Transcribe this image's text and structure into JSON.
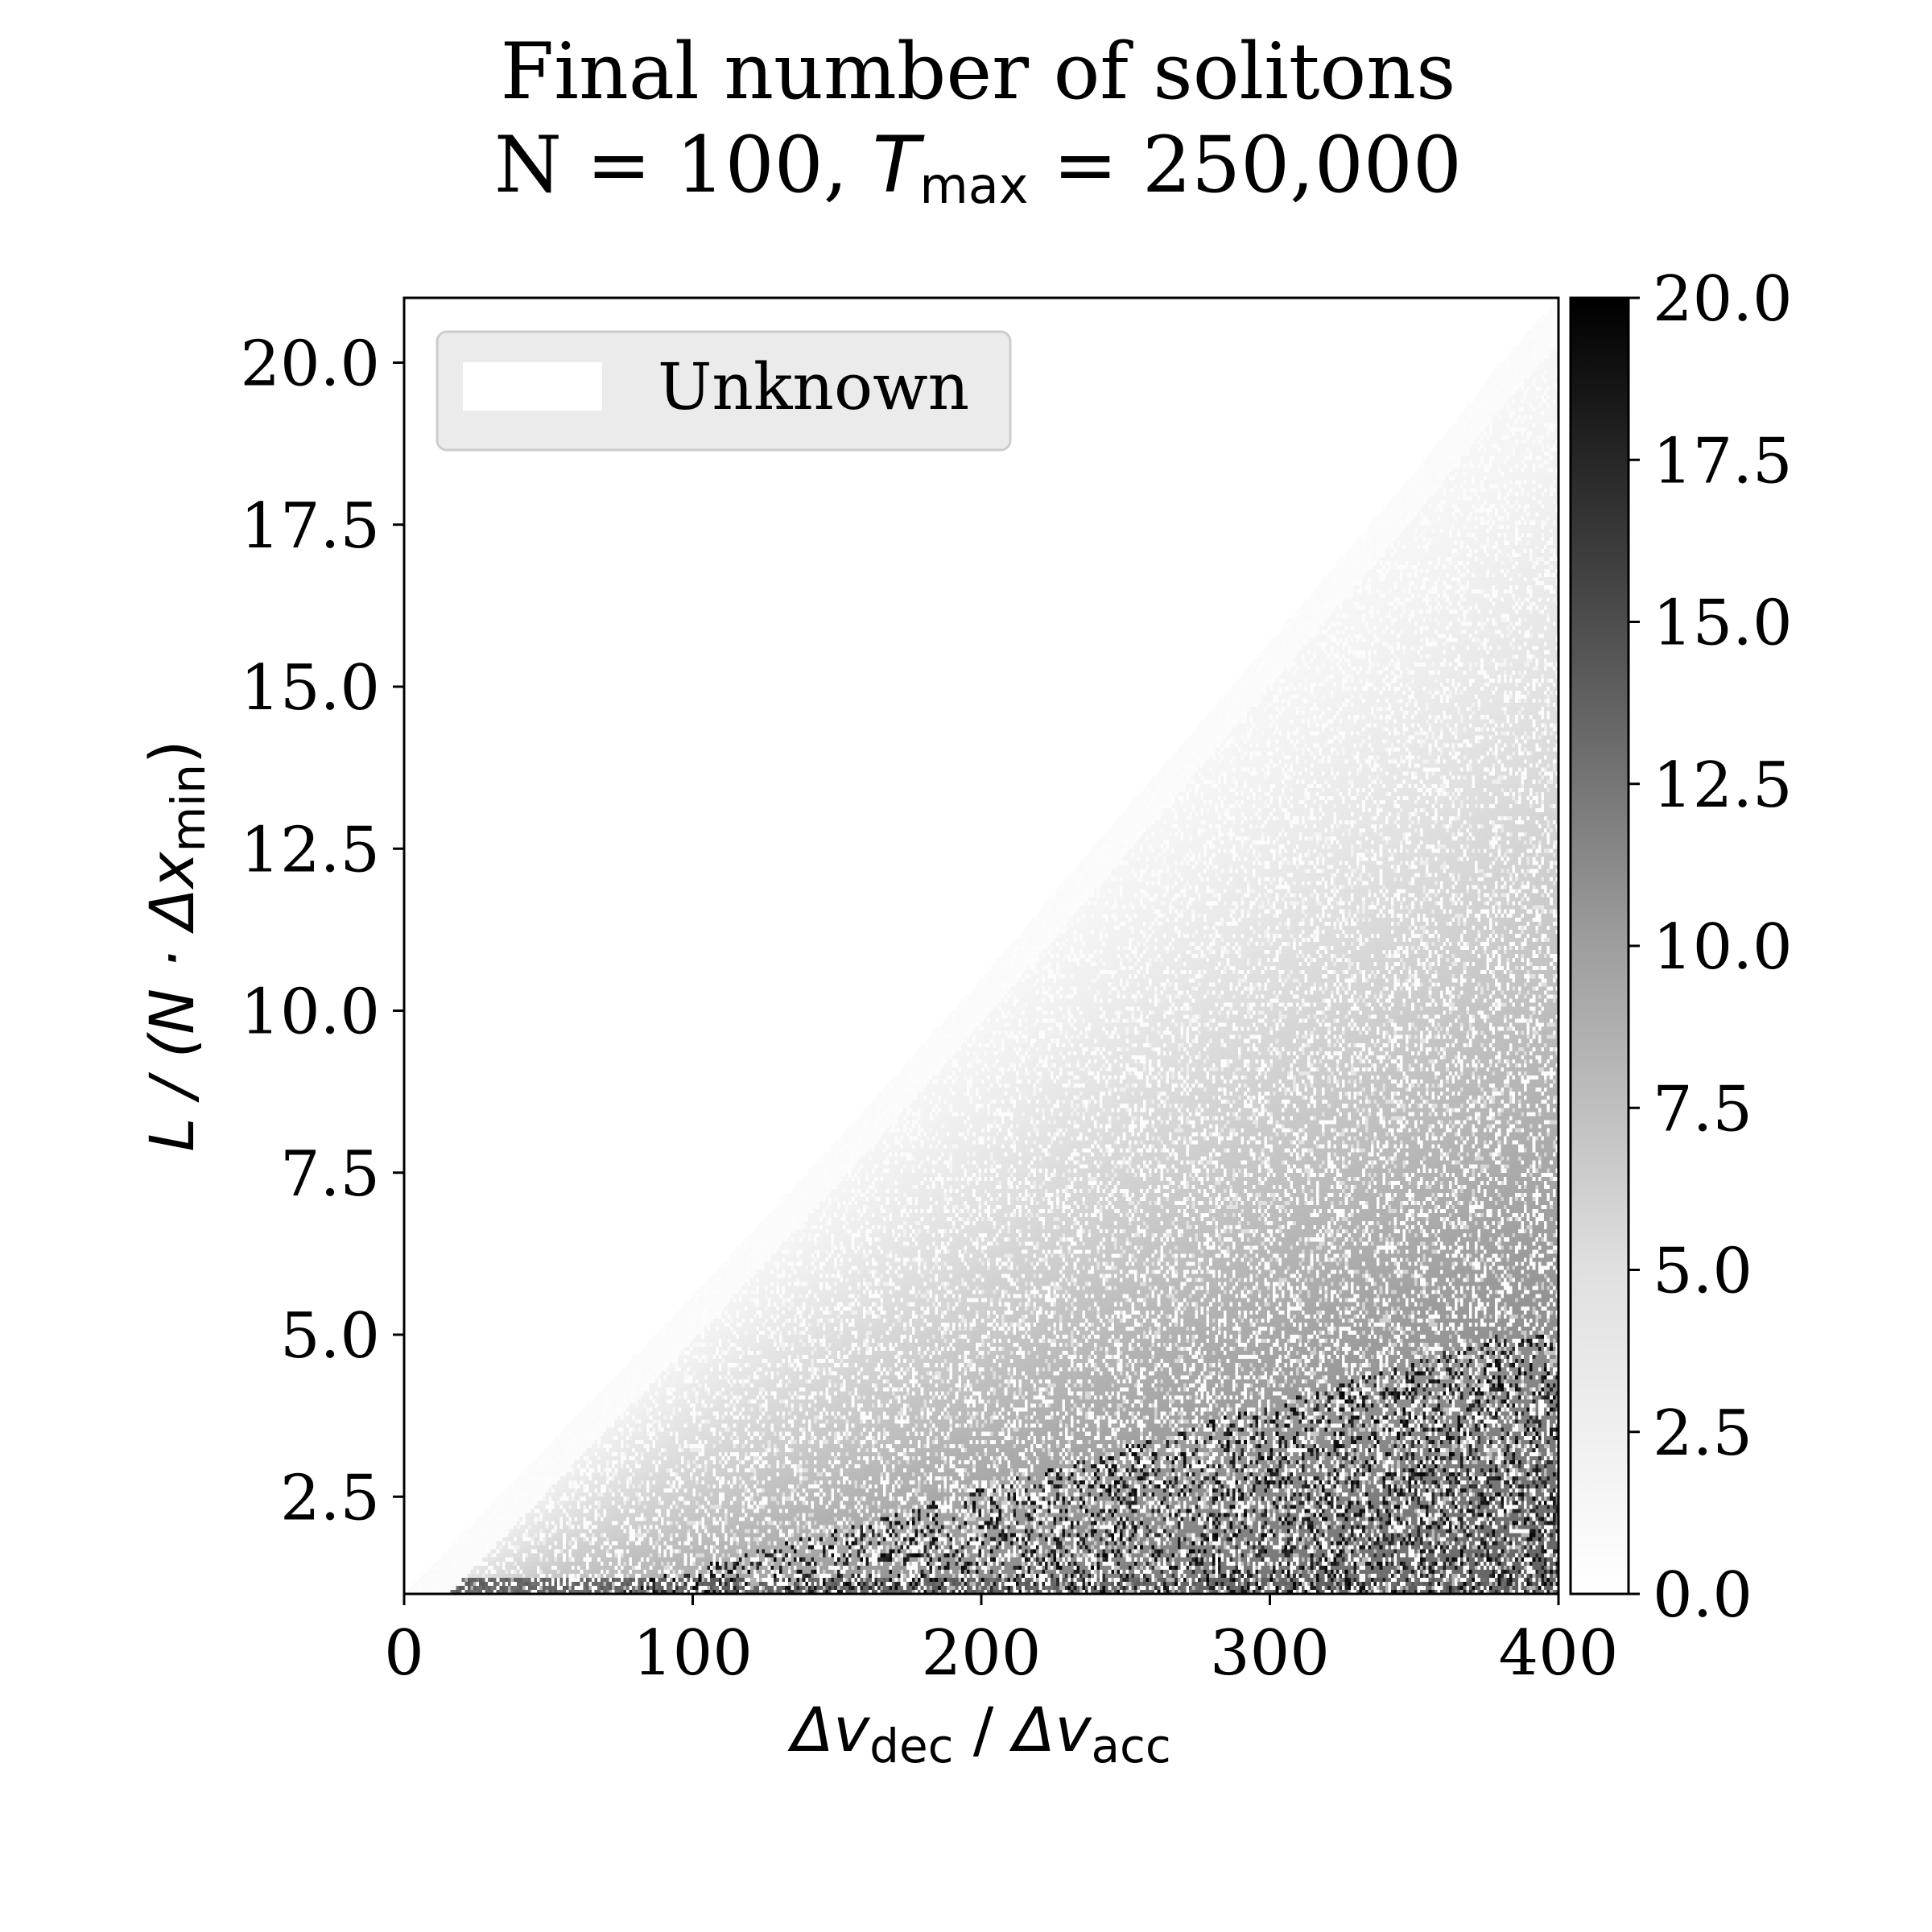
{
  "chart_data": {
    "type": "heatmap",
    "title_line1": "Final number of solitons",
    "title_line2": {
      "prefix": "N = 100, ",
      "var": "T",
      "sub": "max",
      "suffix": " = 250,000"
    },
    "xlabel": {
      "a_var": "Δv",
      "a_sub": "dec",
      "sep": " / ",
      "b_var": "Δv",
      "b_sub": "acc"
    },
    "ylabel": {
      "pre": "L / (N · Δx",
      "sub": "min",
      "post": ")"
    },
    "x_ticks": [
      "0",
      "100",
      "200",
      "300",
      "400"
    ],
    "x_tick_values": [
      0,
      100,
      200,
      300,
      400
    ],
    "y_ticks": [
      "2.5",
      "5.0",
      "7.5",
      "10.0",
      "12.5",
      "15.0",
      "17.5",
      "20.0"
    ],
    "y_tick_values": [
      2.5,
      5.0,
      7.5,
      10.0,
      12.5,
      15.0,
      17.5,
      20.0
    ],
    "colorbar_ticks": [
      "0.0",
      "2.5",
      "5.0",
      "7.5",
      "10.0",
      "12.5",
      "15.0",
      "17.5",
      "20.0"
    ],
    "colorbar_tick_values": [
      0,
      2.5,
      5,
      7.5,
      10,
      12.5,
      15,
      17.5,
      20
    ],
    "xlim": [
      0,
      400
    ],
    "ylim": [
      1.0,
      21.0
    ],
    "clim": [
      0,
      20
    ],
    "colormap": "Greys",
    "legend": {
      "label": "Unknown",
      "placement": "upper-left",
      "swatch_color": "#ffffff",
      "frame_color": "#ebebeb"
    },
    "unknown_boundary": [
      [
        0,
        1.0
      ],
      [
        20,
        1.9
      ],
      [
        50,
        3.3
      ],
      [
        100,
        5.6
      ],
      [
        150,
        8.0
      ],
      [
        200,
        10.5
      ],
      [
        250,
        13.1
      ],
      [
        300,
        15.7
      ],
      [
        350,
        18.3
      ],
      [
        380,
        20.0
      ],
      [
        400,
        21.0
      ]
    ],
    "value_model_description_omitted": true
  }
}
